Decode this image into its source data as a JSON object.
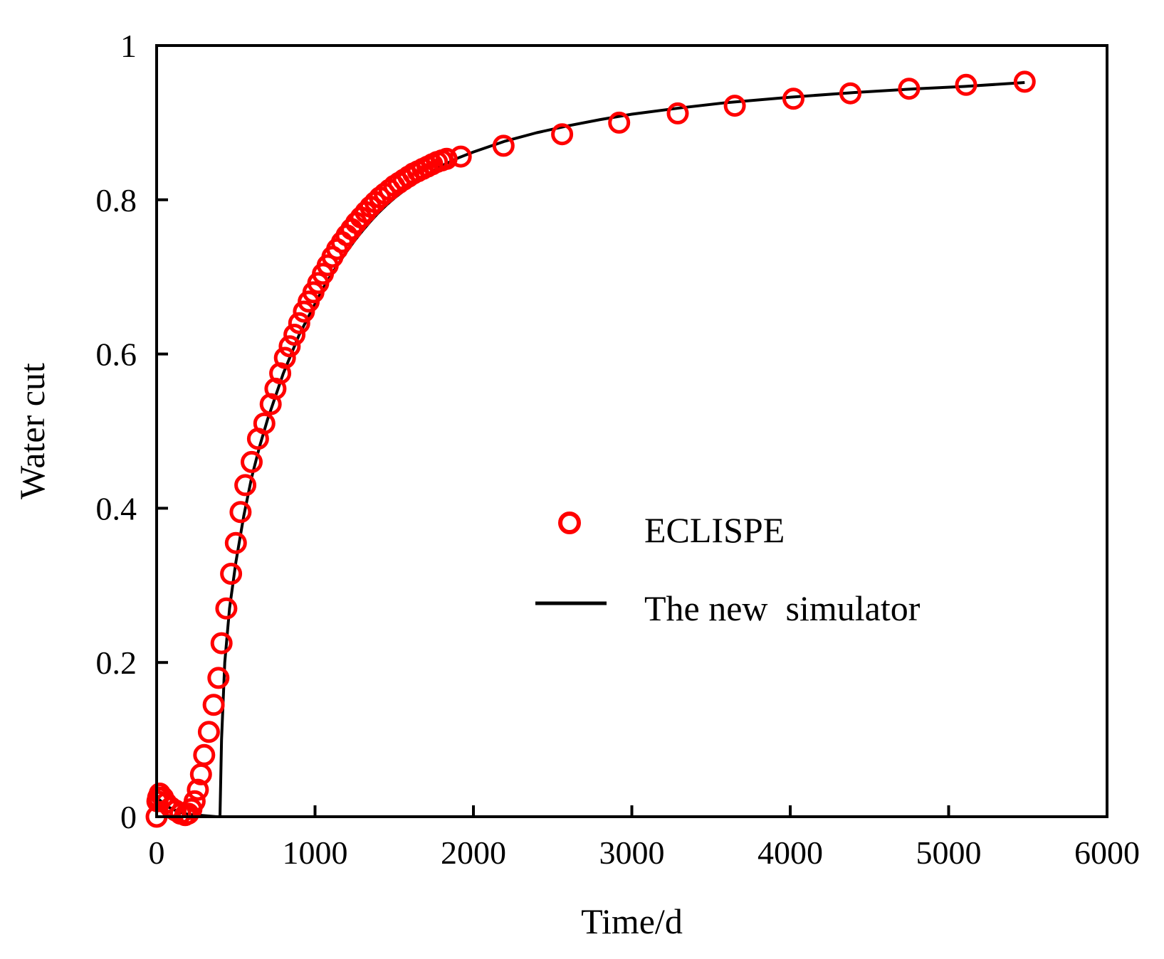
{
  "chart_data": {
    "type": "scatter",
    "title": "",
    "xlabel": "Time/d",
    "ylabel": "Water cut",
    "xlim": [
      0,
      6000
    ],
    "ylim": [
      0,
      1
    ],
    "xticks": [
      0,
      1000,
      2000,
      3000,
      4000,
      5000,
      6000
    ],
    "yticks": [
      0,
      0.2,
      0.4,
      0.6,
      0.8,
      1
    ],
    "ytick_labels": [
      "0",
      "0.2",
      "0.4",
      "0.6",
      "0.8",
      "1"
    ],
    "grid": false,
    "legend_position": "center-right",
    "series": [
      {
        "name": "ECLISPE",
        "kind": "marker",
        "marker": "open-circle",
        "color": "#ff0000",
        "x": [
          0,
          5,
          10,
          20,
          40,
          60,
          90,
          120,
          150,
          180,
          200,
          220,
          240,
          260,
          280,
          300,
          330,
          360,
          390,
          410,
          440,
          470,
          500,
          530,
          560,
          600,
          640,
          680,
          720,
          750,
          780,
          810,
          840,
          870,
          900,
          930,
          960,
          990,
          1020,
          1050,
          1080,
          1110,
          1140,
          1170,
          1200,
          1230,
          1260,
          1290,
          1320,
          1350,
          1380,
          1410,
          1440,
          1470,
          1500,
          1530,
          1560,
          1590,
          1620,
          1650,
          1680,
          1710,
          1740,
          1770,
          1800,
          1830,
          1920,
          2190,
          2560,
          2920,
          3290,
          3650,
          4020,
          4380,
          4750,
          5110,
          5480
        ],
        "y": [
          0.0,
          0.02,
          0.025,
          0.03,
          0.025,
          0.018,
          0.012,
          0.008,
          0.004,
          0.002,
          0.004,
          0.01,
          0.02,
          0.035,
          0.055,
          0.08,
          0.11,
          0.145,
          0.18,
          0.225,
          0.27,
          0.315,
          0.355,
          0.395,
          0.43,
          0.46,
          0.49,
          0.51,
          0.535,
          0.555,
          0.575,
          0.595,
          0.61,
          0.625,
          0.64,
          0.655,
          0.668,
          0.68,
          0.692,
          0.704,
          0.715,
          0.726,
          0.736,
          0.745,
          0.754,
          0.762,
          0.77,
          0.777,
          0.784,
          0.791,
          0.797,
          0.803,
          0.808,
          0.813,
          0.818,
          0.822,
          0.826,
          0.83,
          0.834,
          0.837,
          0.84,
          0.843,
          0.846,
          0.849,
          0.851,
          0.853,
          0.856,
          0.87,
          0.885,
          0.9,
          0.912,
          0.922,
          0.931,
          0.938,
          0.944,
          0.949,
          0.953
        ]
      },
      {
        "name": "The new  simulator",
        "kind": "line",
        "color": "#000000",
        "x": [
          0,
          40,
          80,
          120,
          160,
          200,
          260,
          320,
          380,
          400,
          410,
          430,
          460,
          500,
          550,
          600,
          650,
          700,
          750,
          800,
          850,
          900,
          950,
          1000,
          1050,
          1100,
          1150,
          1200,
          1250,
          1300,
          1350,
          1400,
          1450,
          1500,
          1600,
          1700,
          1800,
          1900,
          2000,
          2200,
          2400,
          2600,
          2800,
          3000,
          3300,
          3600,
          4000,
          4400,
          4800,
          5100,
          5480
        ],
        "y": [
          0.025,
          0.018,
          0.012,
          0.008,
          0.005,
          0.003,
          0.002,
          0.001,
          0.0,
          0.0,
          0.1,
          0.2,
          0.27,
          0.33,
          0.39,
          0.44,
          0.48,
          0.515,
          0.545,
          0.575,
          0.6,
          0.625,
          0.645,
          0.665,
          0.685,
          0.702,
          0.718,
          0.733,
          0.747,
          0.76,
          0.772,
          0.783,
          0.793,
          0.802,
          0.818,
          0.832,
          0.844,
          0.854,
          0.862,
          0.876,
          0.887,
          0.896,
          0.904,
          0.911,
          0.919,
          0.926,
          0.933,
          0.939,
          0.944,
          0.947,
          0.952
        ]
      }
    ]
  }
}
